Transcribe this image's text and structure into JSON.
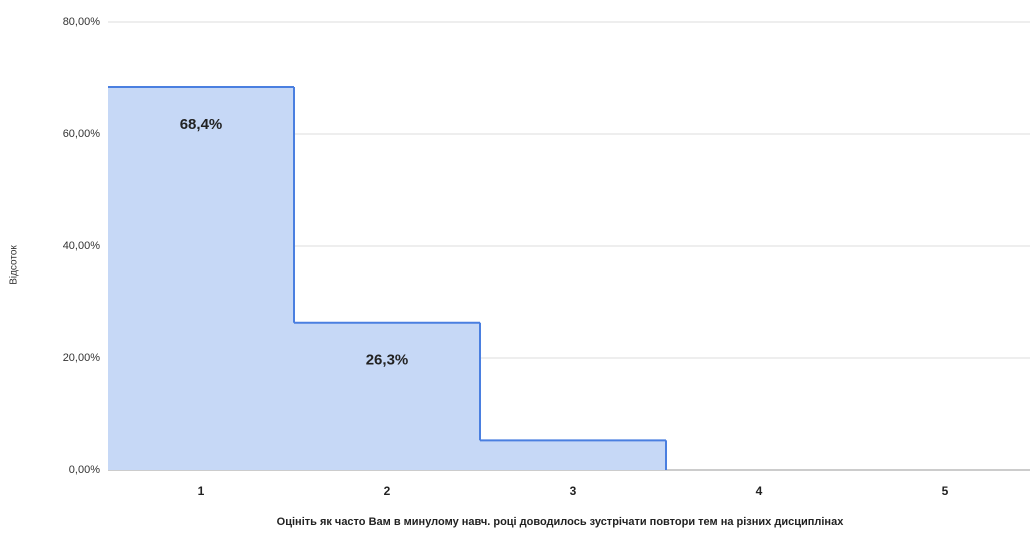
{
  "chart_data": {
    "type": "stepped-area",
    "x_label": "Оцініть як часто Вам в минулому навч. році доводилось зустрічати повтори тем на різних дисциплінах",
    "y_label": "Відсоток",
    "categories": [
      "1",
      "2",
      "3",
      "4",
      "5"
    ],
    "values": [
      68.4,
      26.3,
      5.3,
      0,
      0
    ],
    "value_labels": [
      "68,4%",
      "26,3%",
      null,
      null,
      null
    ],
    "color": "#4a7fe0",
    "fill": "#c6d8f6",
    "ylim": [
      0,
      80
    ],
    "yticks": [
      {
        "value": 0,
        "label": "0,00%"
      },
      {
        "value": 20,
        "label": "20,00%"
      },
      {
        "value": 40,
        "label": "40,00%"
      },
      {
        "value": 60,
        "label": "60,00%"
      },
      {
        "value": 80,
        "label": "80,00%"
      }
    ],
    "grid": true
  }
}
